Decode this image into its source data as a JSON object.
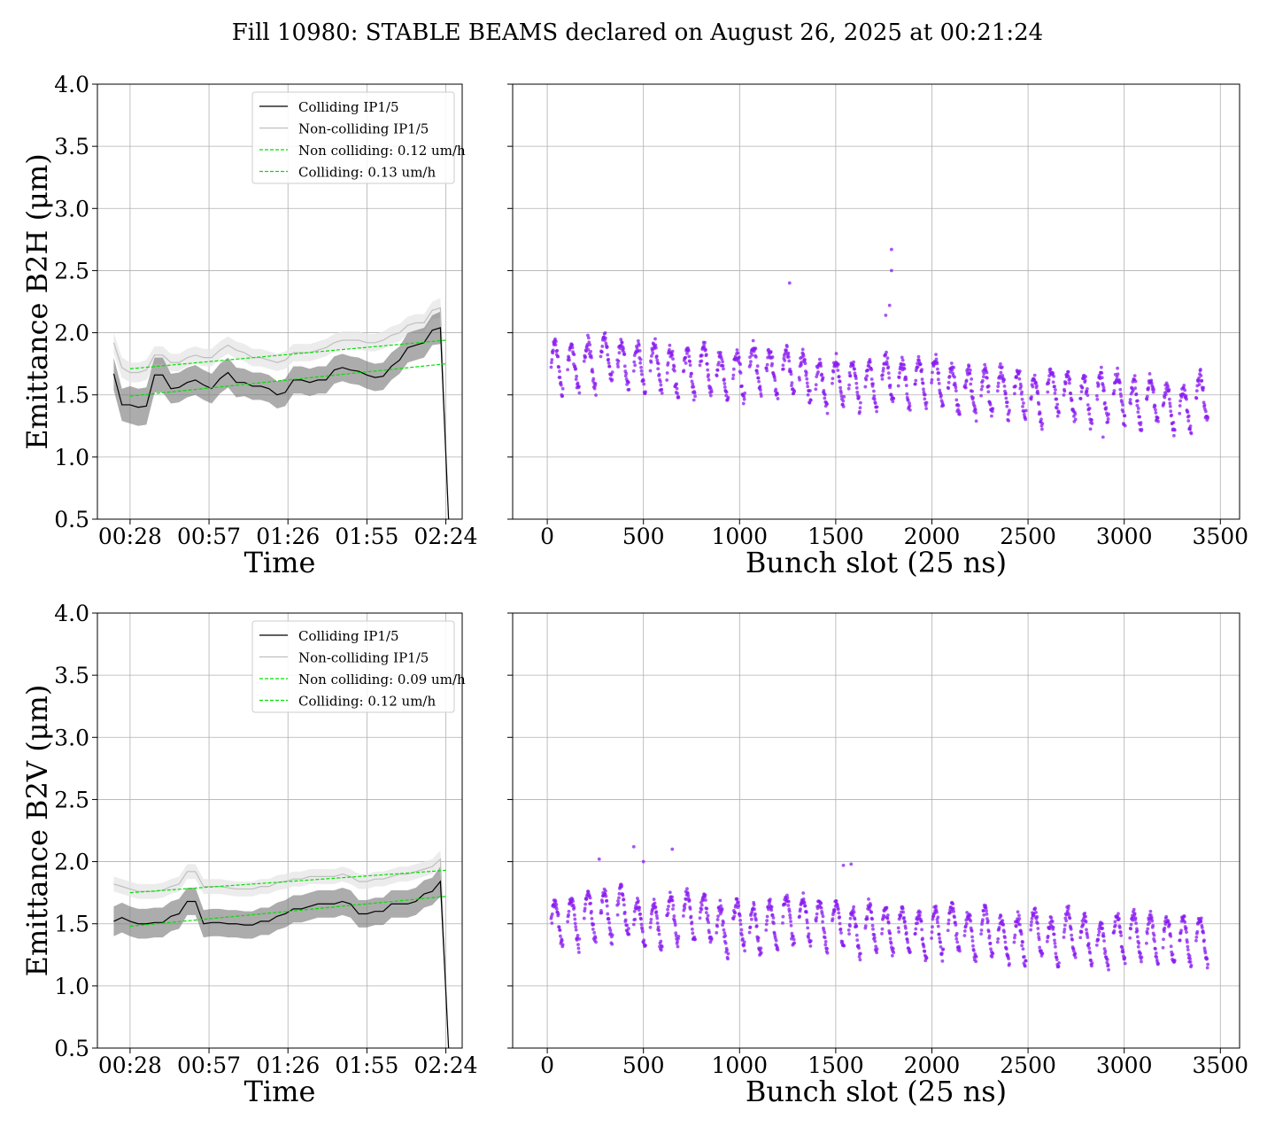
{
  "title": "Fill 10980: STABLE BEAMS declared on August 26, 2025 at 00:21:24",
  "colors": {
    "colliding": "#000000",
    "noncolliding": "#bfbfbf",
    "fit": "#00e000",
    "band_colliding": "#808080",
    "band_noncolliding": "#e6e6e6",
    "scatter": "#8a1cf0",
    "grid": "#b0b0b0"
  },
  "chart_data": [
    {
      "id": "b2h-time",
      "type": "line",
      "ylabel": "Emittance B2H (μm)",
      "xlabel": "Time",
      "ylim": [
        0.5,
        4.0
      ],
      "yticks": [
        "0.5",
        "1.0",
        "1.5",
        "2.0",
        "2.5",
        "3.0",
        "3.5",
        "4.0"
      ],
      "xlim_min": [
        -12,
        122
      ],
      "xticks": [
        {
          "v": 0,
          "label": "00:28"
        },
        {
          "v": 29,
          "label": "00:57"
        },
        {
          "v": 58,
          "label": "01:26"
        },
        {
          "v": 87,
          "label": "01:55"
        },
        {
          "v": 116,
          "label": "02:24"
        }
      ],
      "grid": true,
      "legend_position": "upper center",
      "legend": [
        "Colliding IP1/5",
        "Non-colliding IP1/5",
        "Non colliding: 0.12 um/h",
        "Colliding: 0.13 um/h"
      ],
      "series": [
        {
          "name": "Colliding IP1/5",
          "x": [
            -6,
            -3,
            0,
            3,
            6,
            9,
            12,
            15,
            18,
            21,
            24,
            27,
            30,
            33,
            36,
            39,
            42,
            45,
            48,
            51,
            54,
            57,
            60,
            63,
            66,
            69,
            72,
            75,
            78,
            81,
            84,
            87,
            90,
            93,
            96,
            99,
            102,
            105,
            108,
            111,
            114,
            117
          ],
          "y": [
            1.67,
            1.42,
            1.42,
            1.4,
            1.41,
            1.66,
            1.66,
            1.55,
            1.56,
            1.6,
            1.62,
            1.58,
            1.55,
            1.63,
            1.68,
            1.6,
            1.6,
            1.57,
            1.57,
            1.55,
            1.5,
            1.52,
            1.62,
            1.62,
            1.6,
            1.62,
            1.62,
            1.7,
            1.72,
            1.7,
            1.69,
            1.66,
            1.64,
            1.65,
            1.73,
            1.78,
            1.88,
            1.9,
            1.92,
            2.02,
            2.04,
            0.5
          ],
          "band": [
            0.13,
            0.13,
            0.15,
            0.15,
            0.15,
            0.14,
            0.14,
            0.12,
            0.12,
            0.12,
            0.12,
            0.12,
            0.12,
            0.12,
            0.12,
            0.12,
            0.11,
            0.11,
            0.11,
            0.11,
            0.11,
            0.11,
            0.11,
            0.11,
            0.11,
            0.11,
            0.11,
            0.11,
            0.11,
            0.11,
            0.11,
            0.11,
            0.11,
            0.11,
            0.11,
            0.11,
            0.12,
            0.12,
            0.12,
            0.12,
            0.13,
            0.0
          ]
        },
        {
          "name": "Non-colliding IP1/5",
          "x": [
            -6,
            -3,
            0,
            3,
            6,
            9,
            12,
            15,
            18,
            21,
            24,
            27,
            30,
            33,
            36,
            39,
            42,
            45,
            48,
            51,
            54,
            57,
            60,
            63,
            66,
            69,
            72,
            75,
            78,
            81,
            84,
            87,
            90,
            93,
            96,
            99,
            102,
            105,
            108,
            111,
            114,
            117
          ],
          "y": [
            1.92,
            1.72,
            1.68,
            1.68,
            1.7,
            1.82,
            1.82,
            1.76,
            1.76,
            1.8,
            1.82,
            1.8,
            1.8,
            1.86,
            1.9,
            1.86,
            1.84,
            1.8,
            1.8,
            1.78,
            1.76,
            1.78,
            1.84,
            1.84,
            1.84,
            1.86,
            1.88,
            1.92,
            1.94,
            1.94,
            1.94,
            1.92,
            1.92,
            1.94,
            1.98,
            2.0,
            2.06,
            2.08,
            2.08,
            2.18,
            2.2,
            0.5
          ],
          "band": [
            0.08,
            0.08,
            0.08,
            0.08,
            0.08,
            0.07,
            0.07,
            0.07,
            0.07,
            0.07,
            0.07,
            0.07,
            0.07,
            0.07,
            0.07,
            0.07,
            0.07,
            0.07,
            0.07,
            0.07,
            0.07,
            0.07,
            0.07,
            0.07,
            0.07,
            0.07,
            0.07,
            0.07,
            0.07,
            0.07,
            0.07,
            0.07,
            0.07,
            0.07,
            0.07,
            0.07,
            0.07,
            0.07,
            0.07,
            0.07,
            0.08,
            0.0
          ]
        },
        {
          "name": "Non colliding: 0.12 um/h",
          "fit": true,
          "x": [
            0,
            116
          ],
          "y": [
            1.71,
            1.94
          ]
        },
        {
          "name": "Colliding: 0.13 um/h",
          "fit": true,
          "x": [
            0,
            116
          ],
          "y": [
            1.49,
            1.75
          ]
        }
      ]
    },
    {
      "id": "b2h-bunch",
      "type": "scatter",
      "xlabel": "Bunch slot (25 ns)",
      "ylim": [
        0.5,
        4.0
      ],
      "xlim": [
        -180,
        3600
      ],
      "xticks": [
        "0",
        "500",
        "1000",
        "1500",
        "2000",
        "2500",
        "3000",
        "3500"
      ],
      "grid": true,
      "series": [
        {
          "x_range": [
            0,
            3430
          ],
          "mean_start": 1.82,
          "mean_end": 1.48,
          "spread": 0.12,
          "outliers": [
            [
              1790,
              2.67
            ],
            [
              1790,
              2.5
            ],
            [
              1260,
              2.4
            ],
            [
              1780,
              2.22
            ],
            [
              1760,
              2.14
            ],
            [
              2890,
              1.16
            ]
          ]
        }
      ]
    },
    {
      "id": "b2v-time",
      "type": "line",
      "ylabel": "Emittance B2V (μm)",
      "xlabel": "Time",
      "ylim": [
        0.5,
        4.0
      ],
      "yticks": [
        "0.5",
        "1.0",
        "1.5",
        "2.0",
        "2.5",
        "3.0",
        "3.5",
        "4.0"
      ],
      "xlim_min": [
        -12,
        122
      ],
      "xticks": [
        {
          "v": 0,
          "label": "00:28"
        },
        {
          "v": 29,
          "label": "00:57"
        },
        {
          "v": 58,
          "label": "01:26"
        },
        {
          "v": 87,
          "label": "01:55"
        },
        {
          "v": 116,
          "label": "02:24"
        }
      ],
      "grid": true,
      "legend_position": "upper center",
      "legend": [
        "Colliding IP1/5",
        "Non-colliding IP1/5",
        "Non colliding: 0.09 um/h",
        "Colliding: 0.12 um/h"
      ],
      "series": [
        {
          "name": "Colliding IP1/5",
          "x": [
            -6,
            -3,
            0,
            3,
            6,
            9,
            12,
            15,
            18,
            21,
            24,
            27,
            30,
            33,
            36,
            39,
            42,
            45,
            48,
            51,
            54,
            57,
            60,
            63,
            66,
            69,
            72,
            75,
            78,
            81,
            84,
            87,
            90,
            93,
            96,
            99,
            102,
            105,
            108,
            111,
            114,
            117
          ],
          "y": [
            1.52,
            1.55,
            1.52,
            1.5,
            1.5,
            1.51,
            1.51,
            1.56,
            1.58,
            1.68,
            1.68,
            1.5,
            1.51,
            1.51,
            1.5,
            1.5,
            1.49,
            1.49,
            1.52,
            1.52,
            1.56,
            1.58,
            1.62,
            1.62,
            1.64,
            1.66,
            1.66,
            1.66,
            1.68,
            1.66,
            1.58,
            1.58,
            1.6,
            1.6,
            1.66,
            1.66,
            1.66,
            1.68,
            1.74,
            1.76,
            1.84,
            0.5
          ],
          "band": [
            0.12,
            0.12,
            0.12,
            0.12,
            0.12,
            0.12,
            0.12,
            0.12,
            0.12,
            0.11,
            0.11,
            0.11,
            0.11,
            0.11,
            0.11,
            0.11,
            0.11,
            0.11,
            0.11,
            0.11,
            0.11,
            0.11,
            0.11,
            0.11,
            0.11,
            0.11,
            0.11,
            0.11,
            0.11,
            0.11,
            0.11,
            0.11,
            0.11,
            0.11,
            0.11,
            0.11,
            0.11,
            0.11,
            0.11,
            0.11,
            0.12,
            0.0
          ]
        },
        {
          "name": "Non-colliding IP1/5",
          "x": [
            -6,
            -3,
            0,
            3,
            6,
            9,
            12,
            15,
            18,
            21,
            24,
            27,
            30,
            33,
            36,
            39,
            42,
            45,
            48,
            51,
            54,
            57,
            60,
            63,
            66,
            69,
            72,
            75,
            78,
            81,
            84,
            87,
            90,
            93,
            96,
            99,
            102,
            105,
            108,
            111,
            114,
            117
          ],
          "y": [
            1.82,
            1.8,
            1.78,
            1.76,
            1.76,
            1.76,
            1.77,
            1.8,
            1.82,
            1.92,
            1.92,
            1.8,
            1.8,
            1.8,
            1.79,
            1.78,
            1.78,
            1.78,
            1.8,
            1.8,
            1.83,
            1.84,
            1.86,
            1.86,
            1.88,
            1.88,
            1.88,
            1.88,
            1.9,
            1.88,
            1.84,
            1.84,
            1.86,
            1.86,
            1.88,
            1.9,
            1.9,
            1.92,
            1.94,
            1.96,
            2.02,
            0.5
          ],
          "band": [
            0.06,
            0.06,
            0.06,
            0.06,
            0.06,
            0.06,
            0.06,
            0.06,
            0.06,
            0.06,
            0.06,
            0.06,
            0.06,
            0.06,
            0.06,
            0.06,
            0.06,
            0.06,
            0.06,
            0.06,
            0.06,
            0.06,
            0.06,
            0.06,
            0.06,
            0.06,
            0.06,
            0.06,
            0.06,
            0.06,
            0.06,
            0.06,
            0.06,
            0.06,
            0.06,
            0.06,
            0.06,
            0.06,
            0.06,
            0.06,
            0.07,
            0.0
          ]
        },
        {
          "name": "Non colliding: 0.09 um/h",
          "fit": true,
          "x": [
            0,
            116
          ],
          "y": [
            1.75,
            1.93
          ]
        },
        {
          "name": "Colliding: 0.12 um/h",
          "fit": true,
          "x": [
            0,
            116
          ],
          "y": [
            1.48,
            1.72
          ]
        }
      ]
    },
    {
      "id": "b2v-bunch",
      "type": "scatter",
      "xlabel": "Bunch slot (25 ns)",
      "ylim": [
        0.5,
        4.0
      ],
      "xlim": [
        -180,
        3600
      ],
      "xticks": [
        "0",
        "500",
        "1000",
        "1500",
        "2000",
        "2500",
        "3000",
        "3500"
      ],
      "grid": true,
      "series": [
        {
          "x_range": [
            0,
            3430
          ],
          "mean_start": 1.62,
          "mean_end": 1.4,
          "spread": 0.1,
          "outliers": [
            [
              450,
              2.12
            ],
            [
              650,
              2.1
            ],
            [
              500,
              2.0
            ],
            [
              270,
              2.02
            ],
            [
              1580,
              1.98
            ],
            [
              1540,
              1.97
            ]
          ]
        }
      ]
    }
  ]
}
